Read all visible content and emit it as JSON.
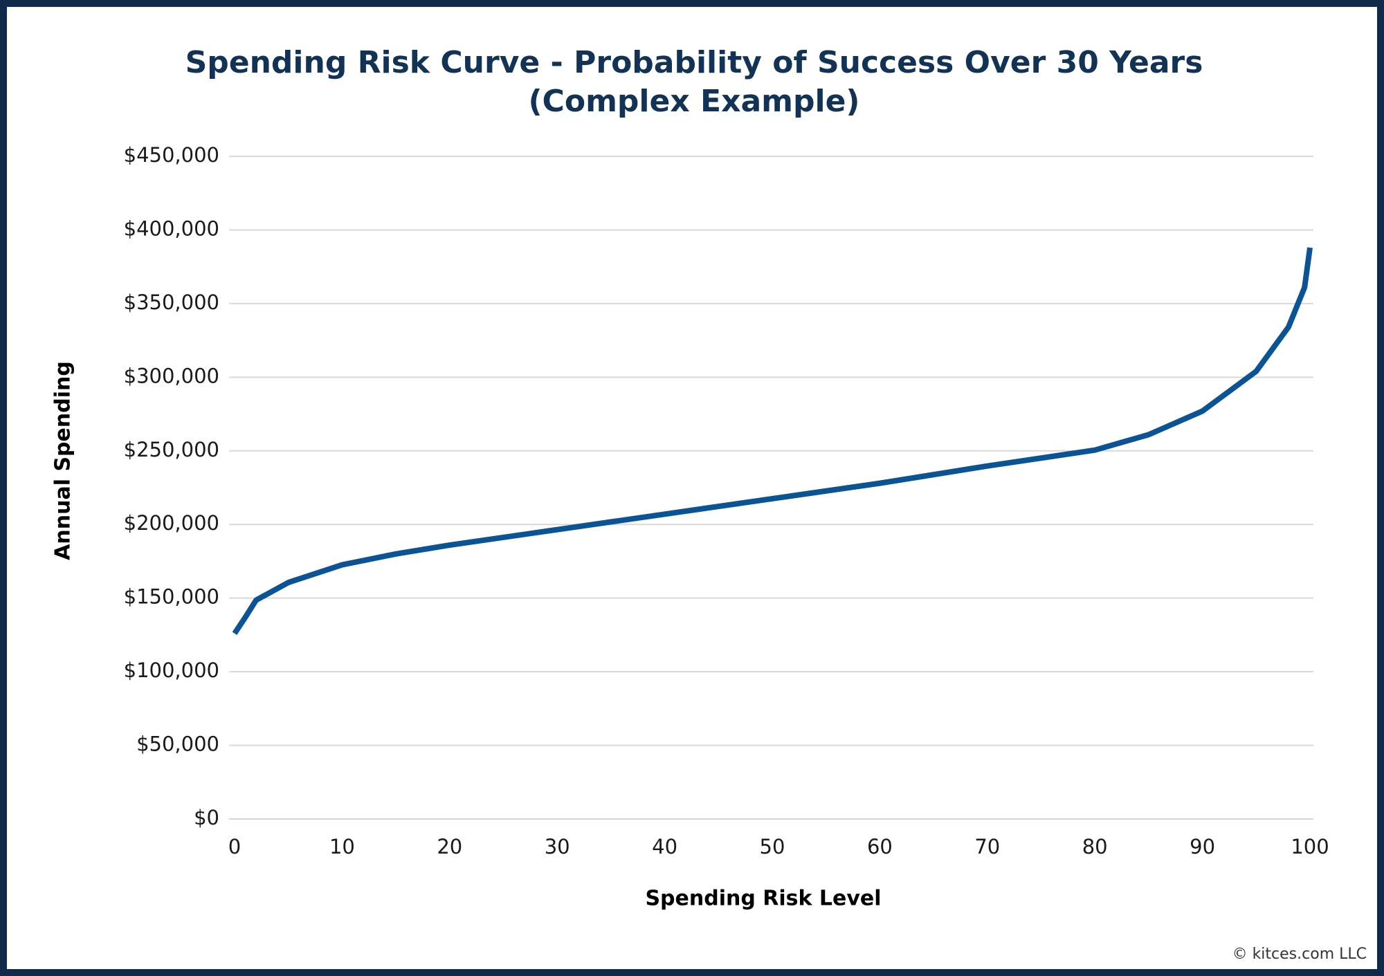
{
  "chart_data": {
    "type": "line",
    "title": [
      "Spending Risk Curve - Probability of Success Over 30 Years",
      "(Complex Example)"
    ],
    "xlabel": "Spending Risk Level",
    "ylabel": "Annual Spending",
    "credit": "© kitces.com LLC",
    "x": [
      0,
      1,
      2,
      5,
      10,
      15,
      20,
      30,
      40,
      50,
      60,
      70,
      80,
      85,
      90,
      95,
      98,
      99.5,
      100
    ],
    "values": [
      126000,
      137000,
      148600,
      160600,
      172600,
      180000,
      186000,
      196500,
      207000,
      217500,
      228000,
      239700,
      250500,
      261000,
      277000,
      304000,
      334000,
      361000,
      388000
    ],
    "color": "#0a5394",
    "xlim": [
      0,
      100
    ],
    "xticks": [
      0,
      10,
      20,
      30,
      40,
      50,
      60,
      70,
      80,
      90,
      100
    ],
    "ylim": [
      0,
      450000
    ],
    "yticks": [
      {
        "value": 0,
        "label": "$0"
      },
      {
        "value": 50000,
        "label": "$50,000"
      },
      {
        "value": 100000,
        "label": "$100,000"
      },
      {
        "value": 150000,
        "label": "$150,000"
      },
      {
        "value": 200000,
        "label": "$200,000"
      },
      {
        "value": 250000,
        "label": "$250,000"
      },
      {
        "value": 300000,
        "label": "$300,000"
      },
      {
        "value": 350000,
        "label": "$350,000"
      },
      {
        "value": 400000,
        "label": "$400,000"
      },
      {
        "value": 450000,
        "label": "$450,000"
      }
    ],
    "grid": true
  }
}
